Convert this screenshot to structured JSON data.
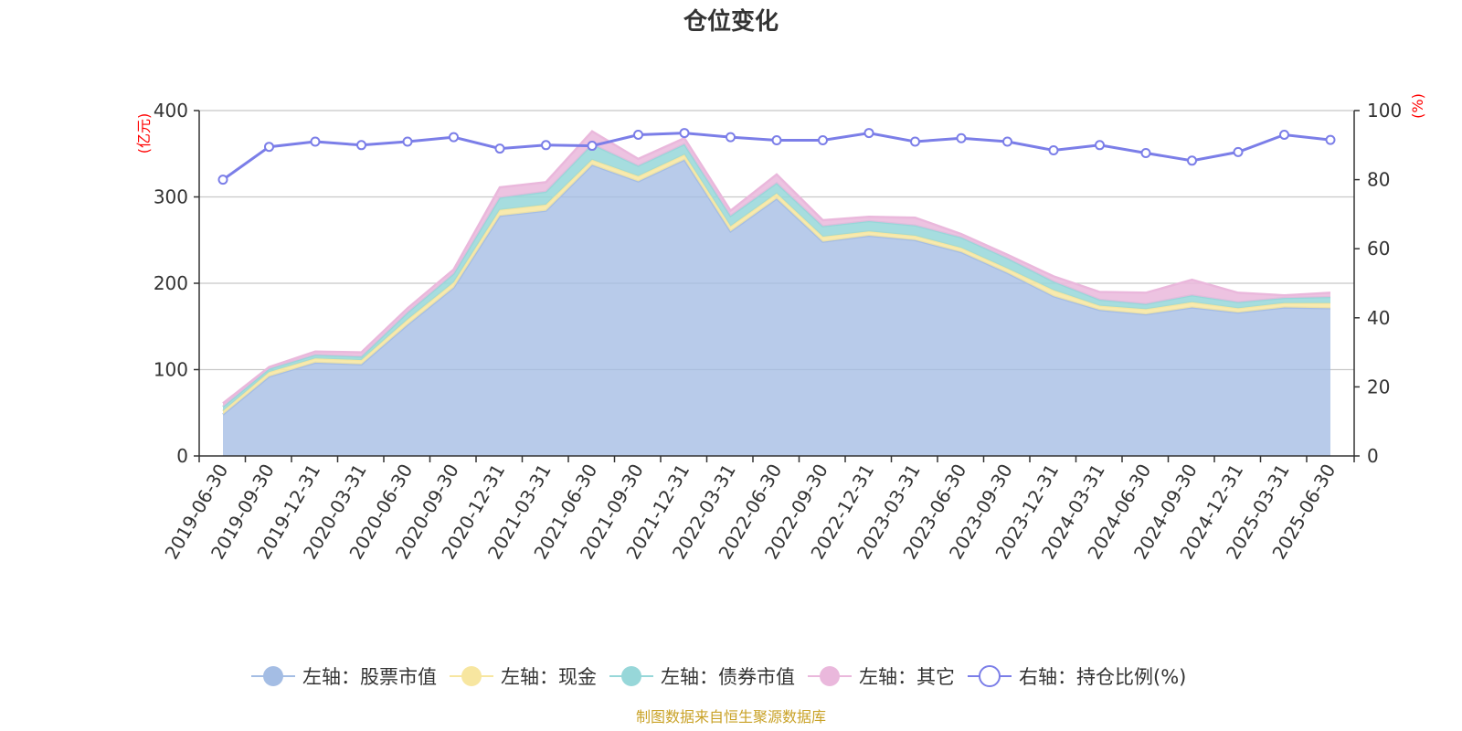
{
  "chart_data": {
    "type": "area",
    "title": "仓位变化",
    "source": "制图数据来自恒生聚源数据库",
    "left_axis": {
      "unit": "(亿元)",
      "ylim": [
        0,
        400
      ],
      "ticks": [
        "0",
        "100",
        "200",
        "300",
        "400"
      ]
    },
    "right_axis": {
      "unit": "(%)",
      "ylim": [
        0,
        100
      ],
      "ticks": [
        "0",
        "20",
        "40",
        "60",
        "80",
        "100"
      ]
    },
    "categories": [
      "2019-06-30",
      "2019-09-30",
      "2019-12-31",
      "2020-03-31",
      "2020-06-30",
      "2020-09-30",
      "2020-12-31",
      "2021-03-31",
      "2021-06-30",
      "2021-09-30",
      "2021-12-31",
      "2022-03-31",
      "2022-06-30",
      "2022-09-30",
      "2022-12-31",
      "2023-03-31",
      "2023-06-30",
      "2023-09-30",
      "2023-12-31",
      "2024-03-31",
      "2024-06-30",
      "2024-09-30",
      "2024-12-31",
      "2025-03-31",
      "2025-06-30"
    ],
    "stacked": true,
    "series": [
      {
        "name": "左轴：股票市值",
        "axis": "left",
        "color": "#a4bde4",
        "values": [
          48,
          92,
          108,
          106,
          152,
          195,
          278,
          284,
          337,
          318,
          343,
          260,
          298,
          248,
          255,
          250,
          236,
          212,
          185,
          169,
          164,
          172,
          166,
          172,
          171
        ]
      },
      {
        "name": "左轴：现金",
        "axis": "left",
        "color": "#f7e6a0",
        "values": [
          4,
          5,
          5,
          5,
          6,
          6,
          7,
          7,
          6,
          6,
          6,
          6,
          6,
          6,
          5,
          5,
          5,
          5,
          7,
          5,
          6,
          6,
          5,
          5,
          6
        ]
      },
      {
        "name": "左轴：债券市值",
        "axis": "left",
        "color": "#97d7d9",
        "values": [
          5,
          4,
          4,
          4,
          8,
          10,
          14,
          15,
          18,
          12,
          12,
          12,
          12,
          12,
          12,
          12,
          12,
          12,
          10,
          7,
          6,
          8,
          7,
          6,
          7
        ]
      },
      {
        "name": "左轴：其它",
        "axis": "left",
        "color": "#eab8dc",
        "values": [
          4,
          2,
          4,
          5,
          5,
          5,
          12,
          11,
          15,
          8,
          7,
          6,
          10,
          7,
          5,
          9,
          4,
          4,
          6,
          9,
          13,
          18,
          11,
          3,
          5
        ]
      },
      {
        "name": "右轴：持仓比例(%)",
        "axis": "right",
        "type": "line",
        "color": "#7b7ee8",
        "values": [
          80,
          89.5,
          91,
          90,
          91,
          92.3,
          89,
          90,
          89.8,
          93,
          93.5,
          92.3,
          91.4,
          91.4,
          93.5,
          91,
          92,
          91,
          88.5,
          90,
          87.7,
          85.5,
          88,
          93,
          91.5
        ]
      }
    ],
    "legend": "bottom"
  }
}
